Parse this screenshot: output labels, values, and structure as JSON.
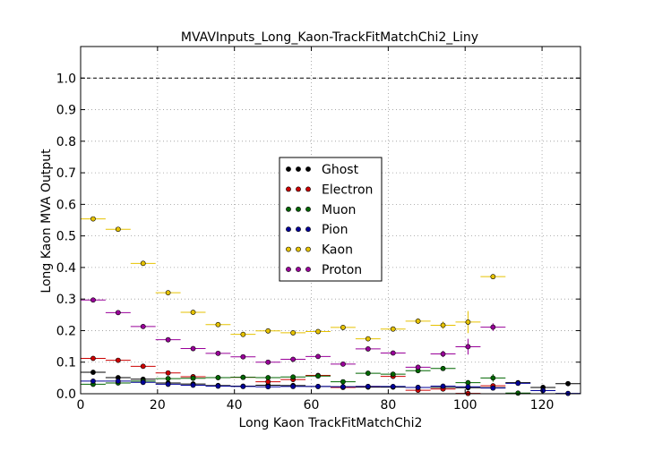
{
  "chart_data": {
    "type": "scatter",
    "title": "MVAVInputs_Long_Kaon-TrackFitMatchChi2_Liny",
    "xlabel": "Long Kaon TrackFitMatchChi2",
    "ylabel": "Long Kaon MVA Output",
    "xlim": [
      0,
      130
    ],
    "ylim": [
      0,
      1.1
    ],
    "xticks": [
      0,
      20,
      40,
      60,
      80,
      100,
      120
    ],
    "xtick_labels": [
      "0",
      "20",
      "40",
      "60",
      "80",
      "100",
      "120"
    ],
    "yticks": [
      0.0,
      0.1,
      0.2,
      0.3,
      0.4,
      0.5,
      0.6,
      0.7,
      0.8,
      0.9,
      1.0
    ],
    "ytick_labels": [
      "0.0",
      "0.1",
      "0.2",
      "0.3",
      "0.4",
      "0.5",
      "0.6",
      "0.7",
      "0.8",
      "0.9",
      "1.0"
    ],
    "grid": true,
    "reference_line": 1.0,
    "legend_position": "center",
    "bin_half_width": 3.25,
    "series": [
      {
        "name": "Ghost",
        "color": "#000000",
        "x": [
          3.25,
          9.75,
          16.25,
          22.75,
          29.25,
          35.75,
          42.25,
          48.75,
          55.25,
          61.75,
          68.25,
          74.75,
          81.25,
          87.75,
          94.25,
          100.75,
          107.25,
          113.75,
          120.25,
          126.75
        ],
        "y": [
          0.068,
          0.051,
          0.046,
          0.034,
          0.031,
          0.026,
          0.024,
          0.027,
          0.026,
          0.023,
          0.022,
          0.021,
          0.021,
          0.02,
          0.02,
          0.019,
          0.019,
          0.035,
          0.02,
          0.032
        ],
        "yerr": [
          0.003,
          0.003,
          0.003,
          0.003,
          0.003,
          0.003,
          0.003,
          0.003,
          0.003,
          0.003,
          0.003,
          0.003,
          0.003,
          0.003,
          0.003,
          0.004,
          0.004,
          0.005,
          0.006,
          0.008
        ]
      },
      {
        "name": "Electron",
        "color": "#cc0000",
        "x": [
          3.25,
          9.75,
          16.25,
          22.75,
          29.25,
          35.75,
          42.25,
          48.75,
          55.25,
          61.75,
          68.25,
          74.75,
          81.25,
          87.75,
          94.25,
          100.75,
          107.25
        ],
        "y": [
          0.112,
          0.106,
          0.087,
          0.066,
          0.054,
          0.051,
          0.052,
          0.038,
          0.045,
          0.058,
          0.02,
          0.023,
          0.055,
          0.011,
          0.015,
          0.001,
          0.025
        ],
        "yerr": [
          0.003,
          0.003,
          0.003,
          0.003,
          0.003,
          0.003,
          0.003,
          0.003,
          0.004,
          0.004,
          0.005,
          0.005,
          0.006,
          0.006,
          0.007,
          0.008,
          0.008
        ]
      },
      {
        "name": "Muon",
        "color": "#006600",
        "x": [
          3.25,
          9.75,
          16.25,
          22.75,
          29.25,
          35.75,
          42.25,
          48.75,
          55.25,
          61.75,
          68.25,
          74.75,
          81.25,
          87.75,
          94.25,
          100.75,
          107.25,
          113.75
        ],
        "y": [
          0.03,
          0.034,
          0.04,
          0.048,
          0.049,
          0.051,
          0.052,
          0.051,
          0.053,
          0.056,
          0.038,
          0.065,
          0.062,
          0.073,
          0.08,
          0.035,
          0.05,
          0.002
        ],
        "yerr": [
          0.003,
          0.003,
          0.003,
          0.003,
          0.003,
          0.003,
          0.003,
          0.004,
          0.004,
          0.004,
          0.005,
          0.005,
          0.006,
          0.006,
          0.007,
          0.008,
          0.012,
          0.005
        ]
      },
      {
        "name": "Pion",
        "color": "#000099",
        "x": [
          3.25,
          9.75,
          16.25,
          22.75,
          29.25,
          35.75,
          42.25,
          48.75,
          55.25,
          61.75,
          68.25,
          74.75,
          81.25,
          87.75,
          94.25,
          100.75,
          107.25,
          113.75,
          120.25,
          126.75
        ],
        "y": [
          0.04,
          0.04,
          0.036,
          0.03,
          0.027,
          0.024,
          0.023,
          0.022,
          0.023,
          0.023,
          0.022,
          0.023,
          0.023,
          0.02,
          0.024,
          0.022,
          0.018,
          0.033,
          0.01,
          0.001
        ],
        "yerr": [
          0.002,
          0.002,
          0.002,
          0.002,
          0.002,
          0.002,
          0.002,
          0.002,
          0.002,
          0.003,
          0.003,
          0.003,
          0.003,
          0.003,
          0.004,
          0.004,
          0.005,
          0.006,
          0.008,
          0.005
        ]
      },
      {
        "name": "Kaon",
        "color": "#e6c200",
        "x": [
          3.25,
          9.75,
          16.25,
          22.75,
          29.25,
          35.75,
          42.25,
          48.75,
          55.25,
          61.75,
          68.25,
          74.75,
          81.25,
          87.75,
          94.25,
          100.75,
          107.25
        ],
        "y": [
          0.554,
          0.521,
          0.413,
          0.32,
          0.258,
          0.219,
          0.188,
          0.199,
          0.193,
          0.197,
          0.21,
          0.174,
          0.205,
          0.23,
          0.217,
          0.227,
          0.371
        ],
        "yerr": [
          0.003,
          0.003,
          0.003,
          0.003,
          0.003,
          0.003,
          0.004,
          0.004,
          0.004,
          0.005,
          0.006,
          0.007,
          0.008,
          0.009,
          0.012,
          0.035,
          0.006
        ]
      },
      {
        "name": "Proton",
        "color": "#990099",
        "x": [
          3.25,
          9.75,
          16.25,
          22.75,
          29.25,
          35.75,
          42.25,
          48.75,
          55.25,
          61.75,
          68.25,
          74.75,
          81.25,
          87.75,
          94.25,
          100.75,
          107.25
        ],
        "y": [
          0.297,
          0.257,
          0.213,
          0.171,
          0.143,
          0.128,
          0.117,
          0.1,
          0.109,
          0.118,
          0.094,
          0.142,
          0.129,
          0.084,
          0.126,
          0.149,
          0.211
        ],
        "yerr": [
          0.003,
          0.003,
          0.003,
          0.003,
          0.003,
          0.003,
          0.003,
          0.004,
          0.004,
          0.004,
          0.005,
          0.006,
          0.007,
          0.008,
          0.01,
          0.025,
          0.012
        ]
      }
    ]
  }
}
